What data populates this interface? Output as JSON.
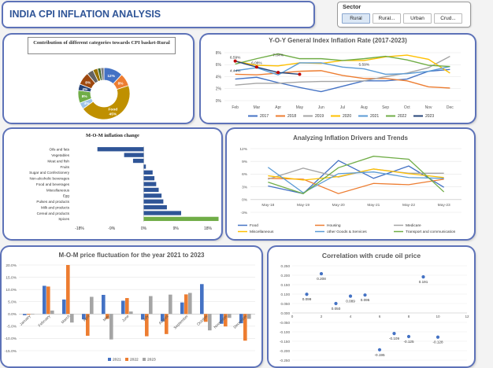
{
  "header": {
    "title": "INDIA CPI INFLATION ANALYSIS"
  },
  "slicer": {
    "title": "Sector",
    "buttons": [
      "Rural",
      "Rural...",
      "Urban",
      "Crud..."
    ],
    "selected": "Rural"
  },
  "donut": {
    "title": "Contribution of different categories towards CPI basket-Rural",
    "slice_labels": [
      "12%",
      "8%",
      "Food 45%",
      "4%",
      "8%",
      "4%",
      "8%"
    ]
  },
  "yoy": {
    "title": "Y-O-Y General Index Inflation Rate (2017-2023)",
    "annotations": [
      "6.59%",
      "7.04%",
      "6.08%",
      "5.59%",
      "4.44%"
    ]
  },
  "mom": {
    "title": "M-O-M inflation change"
  },
  "drivers": {
    "title": "Analyzing Inflation Drivers and Trends"
  },
  "fluct": {
    "title": "M-O-M price fluctuation for the year 2021 to 2023"
  },
  "corr": {
    "title": "Correlation with crude oil price"
  },
  "chart_data": [
    {
      "type": "pie",
      "title": "Contribution of different categories towards CPI basket-Rural",
      "values": [
        12,
        8,
        45,
        4,
        8,
        4,
        8,
        4,
        3,
        2,
        2
      ],
      "labels": [
        "12%",
        "8%",
        "Food 45%",
        "4%",
        "8%",
        "4%",
        "8%",
        "",
        "",
        "",
        ""
      ],
      "colors": [
        "#4472c4",
        "#ed7d31",
        "#bf9000",
        "#9dc3e6",
        "#70ad47",
        "#264478",
        "#9e480e",
        "#636363",
        "#997300",
        "#43682b",
        "#7f7f7f"
      ]
    },
    {
      "type": "line",
      "title": "Y-O-Y General Index Inflation Rate (2017-2023)",
      "categories": [
        "Feb",
        "Mar",
        "Apr",
        "May",
        "Jun",
        "Jul",
        "Aug",
        "Sep",
        "Oct",
        "Nov",
        "Dec"
      ],
      "ylim": [
        0,
        8
      ],
      "yticks": [
        "0%",
        "2%",
        "4%",
        "6%",
        "8%"
      ],
      "series": [
        {
          "name": "2017",
          "color": "#4472c4",
          "values": [
            3.6,
            3.9,
            3.0,
            2.2,
            1.5,
            2.4,
            3.3,
            3.3,
            3.6,
            4.9,
            5.2
          ]
        },
        {
          "name": "2018",
          "color": "#ed7d31",
          "values": [
            4.4,
            4.3,
            4.6,
            4.9,
            5.0,
            4.2,
            3.7,
            3.7,
            3.3,
            2.3,
            2.1
          ]
        },
        {
          "name": "2019",
          "color": "#a5a5a5",
          "values": [
            2.6,
            2.9,
            2.9,
            3.1,
            3.2,
            3.2,
            3.3,
            4.0,
            4.6,
            5.5,
            7.4
          ]
        },
        {
          "name": "2020",
          "color": "#ffc000",
          "values": [
            6.6,
            5.9,
            5.8,
            6.3,
            6.2,
            6.7,
            6.7,
            7.3,
            7.6,
            6.9,
            4.6
          ]
        },
        {
          "name": "2021",
          "color": "#5b9bd5",
          "values": [
            5.0,
            5.5,
            4.3,
            6.3,
            6.3,
            5.6,
            5.3,
            4.4,
            4.5,
            4.9,
            5.7
          ]
        },
        {
          "name": "2022",
          "color": "#70ad47",
          "values": [
            6.1,
            7.0,
            7.8,
            7.0,
            7.0,
            6.7,
            7.0,
            7.4,
            6.8,
            5.9,
            5.7
          ]
        },
        {
          "name": "2023",
          "color": "#264478",
          "values": [
            6.6,
            5.6,
            4.7,
            4.4,
            null,
            null,
            null,
            null,
            null,
            null,
            null
          ]
        }
      ],
      "legend": "bottom"
    },
    {
      "type": "bar",
      "orientation": "horizontal",
      "title": "M-O-M inflation change",
      "categories": [
        "Oils and fats",
        "Vegetables",
        "Meat and fish",
        "Fruits",
        "Sugar and Confectionery",
        "Non-alcoholic beverages",
        "Food and beverages",
        "Miscellaneous",
        "Egg",
        "Pulses and products",
        "Milk and products",
        "Cereal and products",
        "Spices"
      ],
      "values": [
        -13.0,
        -5.5,
        -3.0,
        0.6,
        2.5,
        3.0,
        3.5,
        4.2,
        5.0,
        5.5,
        6.5,
        10.5,
        21.0
      ],
      "xlim": [
        -20,
        20
      ],
      "xticks": [
        "-18%",
        "-9%",
        "0%",
        "9%",
        "18%"
      ]
    },
    {
      "type": "line",
      "title": "Analyzing Inflation Drivers and Trends",
      "categories": [
        "May-18",
        "May-19",
        "May-20",
        "May-21",
        "May-22",
        "May-23"
      ],
      "ylim": [
        -3,
        12
      ],
      "yticks": [
        "-3%",
        "0%",
        "3%",
        "6%",
        "9%",
        "12%"
      ],
      "series": [
        {
          "name": "Food",
          "color": "#4472c4",
          "values": [
            3.2,
            1.4,
            9.2,
            5.0,
            7.9,
            2.9
          ]
        },
        {
          "name": "Housing",
          "color": "#ed7d31",
          "values": [
            5.0,
            4.8,
            1.4,
            3.8,
            3.5,
            4.8
          ]
        },
        {
          "name": "Medicare",
          "color": "#a5a5a5",
          "values": [
            4.8,
            7.4,
            5.3,
            7.2,
            6.2,
            6.2
          ]
        },
        {
          "name": "Miscellaneous",
          "color": "#ffc000",
          "values": [
            5.6,
            4.6,
            5.4,
            7.2,
            6.1,
            5.2
          ]
        },
        {
          "name": "other Goods & Services",
          "color": "#5b9bd5",
          "values": [
            7.6,
            1.6,
            6.1,
            6.5,
            5.2,
            5.0
          ]
        },
        {
          "name": "Transport and communication",
          "color": "#70ad47",
          "values": [
            4.1,
            1.4,
            7.5,
            10.2,
            9.5,
            1.8
          ]
        }
      ],
      "legend": "bottom"
    },
    {
      "type": "bar",
      "title": "M-O-M price fluctuation for the year 2021 to 2023",
      "categories": [
        "January",
        "February",
        "March",
        "April",
        "May",
        "June",
        "July",
        "August",
        "September",
        "October",
        "November",
        "December"
      ],
      "ylim": [
        -15,
        20
      ],
      "yticks": [
        "-15.0%",
        "-10.0%",
        "-5.0%",
        "0.0%",
        "5.0%",
        "10.0%",
        "15.0%",
        "20.0%"
      ],
      "series": [
        {
          "name": "2021",
          "color": "#4472c4",
          "values": [
            -0.5,
            11.5,
            5.9,
            -2.2,
            7.8,
            5.4,
            -2.3,
            -3.0,
            4.7,
            12.2,
            -4.0,
            -3.8
          ]
        },
        {
          "name": "2022",
          "color": "#ed7d31",
          "values": [
            -0.3,
            11.2,
            20.0,
            -8.9,
            -2.0,
            6.5,
            -9.1,
            -8.2,
            8.0,
            -3.2,
            -5.1,
            -10.9
          ]
        },
        {
          "name": "2023",
          "color": "#a5a5a5",
          "values": [
            -0.2,
            1.4,
            -3.5,
            7.0,
            -10.4,
            1.0,
            7.3,
            7.9,
            8.6,
            -6.7,
            -1.6,
            -2.0
          ]
        }
      ],
      "legend": "bottom"
    },
    {
      "type": "scatter",
      "title": "Correlation with crude oil price",
      "xlim": [
        0,
        12
      ],
      "ylim": [
        -0.25,
        0.25
      ],
      "xticks": [
        "0",
        "2",
        "4",
        "6",
        "8",
        "10",
        "12"
      ],
      "yticks": [
        "-0.250",
        "-0.200",
        "-0.150",
        "-0.100",
        "-0.050",
        "0.000",
        "0.050",
        "0.100",
        "0.150",
        "0.200",
        "0.250"
      ],
      "points": [
        {
          "x": 1,
          "y": 0.099,
          "label": "0.099"
        },
        {
          "x": 2,
          "y": 0.208,
          "label": "0.208"
        },
        {
          "x": 3,
          "y": 0.05,
          "label": "0.050"
        },
        {
          "x": 4,
          "y": 0.089,
          "label": "0.089"
        },
        {
          "x": 5,
          "y": 0.095,
          "label": "0.095"
        },
        {
          "x": 6,
          "y": -0.195,
          "label": "-0.195"
        },
        {
          "x": 7,
          "y": -0.109,
          "label": "-0.109"
        },
        {
          "x": 8,
          "y": -0.125,
          "label": "-0.125"
        },
        {
          "x": 9,
          "y": 0.191,
          "label": "0.191"
        },
        {
          "x": 10,
          "y": -0.128,
          "label": "-0.128"
        }
      ],
      "color": "#4472c4"
    }
  ]
}
